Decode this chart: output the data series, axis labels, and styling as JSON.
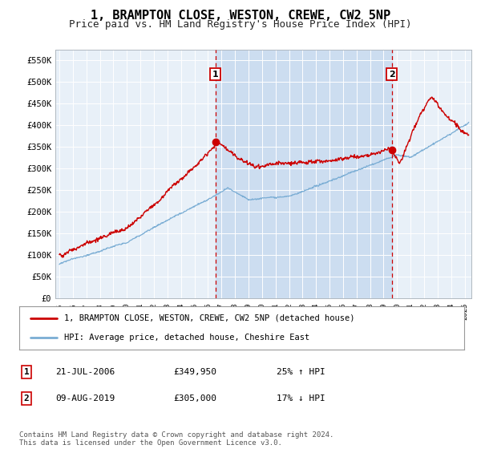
{
  "title": "1, BRAMPTON CLOSE, WESTON, CREWE, CW2 5NP",
  "subtitle": "Price paid vs. HM Land Registry's House Price Index (HPI)",
  "title_fontsize": 11,
  "subtitle_fontsize": 9,
  "background_color": "#ffffff",
  "plot_bg_color": "#e8f0f8",
  "shaded_region_color": "#ccddf0",
  "grid_color": "#ffffff",
  "ylim": [
    0,
    575000
  ],
  "ytick_labels": [
    "£0",
    "£50K",
    "£100K",
    "£150K",
    "£200K",
    "£250K",
    "£300K",
    "£350K",
    "£400K",
    "£450K",
    "£500K",
    "£550K"
  ],
  "ytick_values": [
    0,
    50000,
    100000,
    150000,
    200000,
    250000,
    300000,
    350000,
    400000,
    450000,
    500000,
    550000
  ],
  "line1_color": "#cc0000",
  "line2_color": "#7aadd4",
  "marker1_date": 2006.55,
  "marker2_date": 2019.6,
  "marker1_value": 349950,
  "marker2_value": 305000,
  "marker1_label": "1",
  "marker2_label": "2",
  "legend_line1": "1, BRAMPTON CLOSE, WESTON, CREWE, CW2 5NP (detached house)",
  "legend_line2": "HPI: Average price, detached house, Cheshire East",
  "footer": "Contains HM Land Registry data © Crown copyright and database right 2024.\nThis data is licensed under the Open Government Licence v3.0.",
  "xlim_start": 1994.7,
  "xlim_end": 2025.5
}
